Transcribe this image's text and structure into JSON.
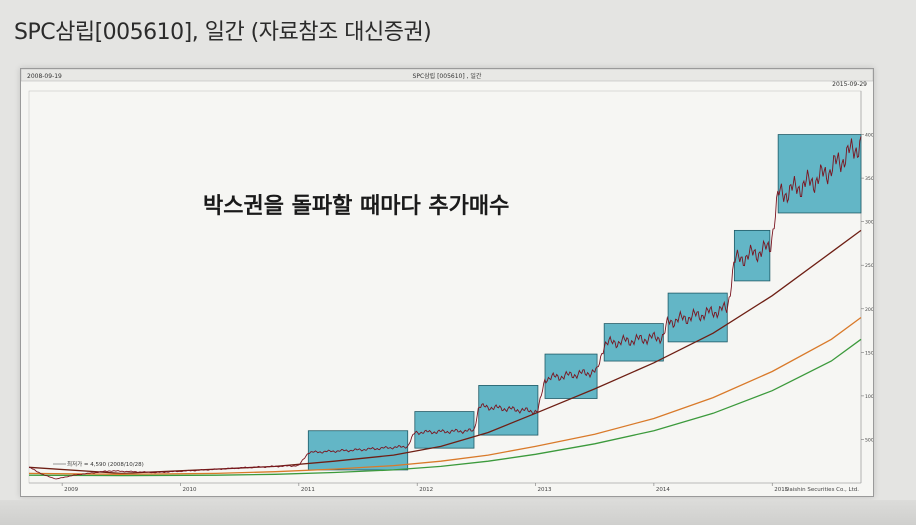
{
  "page_title": "SPC삼립[005610], 일간 (자료참조 대신증권)",
  "chart_data": {
    "type": "line",
    "title": "SPC삼립 [005610] , 일간",
    "start_date_label": "2008-09-19",
    "end_date_label": "2015-09-29",
    "annotation_text": "박스권을 돌파할 때마다 추가매수",
    "low_label": "최저가 = 4,590 (2008/10/28)",
    "vendor_label": "Daishin Securities Co., Ltd.",
    "x_tick_labels": [
      "2009",
      "2010",
      "2011",
      "2012",
      "2013",
      "2014",
      "2015"
    ],
    "y_tick_labels": [
      "400000",
      "350000",
      "300000",
      "250000",
      "200000",
      "150000",
      "100000",
      "50000"
    ],
    "ylim": [
      0,
      450000
    ],
    "xlim": [
      2008.72,
      2015.75
    ],
    "colors": {
      "price": "#7a1520",
      "ma_short": "#6e1f14",
      "ma_mid": "#d97a2a",
      "ma_long": "#3c9a3c",
      "box_fill": "#3aa4b8",
      "annotation": "#1a1a1a"
    },
    "series": [
      {
        "key": "ma_short",
        "x": [
          2008.72,
          2009.5,
          2010.3,
          2010.8,
          2011.3,
          2011.8,
          2012.2,
          2012.6,
          2013.0,
          2013.5,
          2014.0,
          2014.5,
          2015.0,
          2015.5,
          2015.75
        ],
        "y": [
          18000,
          11000,
          16000,
          19000,
          25000,
          32000,
          42000,
          58000,
          80000,
          108000,
          138000,
          172000,
          215000,
          265000,
          290000
        ]
      },
      {
        "key": "ma_mid",
        "x": [
          2008.72,
          2009.5,
          2010.3,
          2010.8,
          2011.3,
          2011.8,
          2012.2,
          2012.6,
          2013.0,
          2013.5,
          2014.0,
          2014.5,
          2015.0,
          2015.5,
          2015.75
        ],
        "y": [
          11000,
          10000,
          11000,
          13000,
          16000,
          20000,
          25000,
          32000,
          42000,
          56000,
          74000,
          98000,
          128000,
          165000,
          190000
        ]
      },
      {
        "key": "ma_long",
        "x": [
          2008.72,
          2009.5,
          2010.3,
          2010.8,
          2011.3,
          2011.8,
          2012.2,
          2012.6,
          2013.0,
          2013.5,
          2014.0,
          2014.5,
          2015.0,
          2015.5,
          2015.75
        ],
        "y": [
          9000,
          8500,
          9000,
          10000,
          12000,
          15000,
          19000,
          25000,
          33000,
          45000,
          60000,
          80000,
          106000,
          140000,
          165000
        ]
      }
    ],
    "boxes": [
      {
        "x": [
          2011.08,
          2011.92
        ],
        "y": [
          15000,
          60000
        ]
      },
      {
        "x": [
          2011.98,
          2012.48
        ],
        "y": [
          40000,
          82000
        ]
      },
      {
        "x": [
          2012.52,
          2013.02
        ],
        "y": [
          55000,
          112000
        ]
      },
      {
        "x": [
          2013.08,
          2013.52
        ],
        "y": [
          97000,
          148000
        ]
      },
      {
        "x": [
          2013.58,
          2014.08
        ],
        "y": [
          140000,
          183000
        ]
      },
      {
        "x": [
          2014.12,
          2014.62
        ],
        "y": [
          162000,
          218000
        ]
      },
      {
        "x": [
          2014.68,
          2014.98
        ],
        "y": [
          232000,
          290000
        ]
      },
      {
        "x": [
          2015.05,
          2015.75
        ],
        "y": [
          310000,
          400000
        ]
      }
    ]
  }
}
